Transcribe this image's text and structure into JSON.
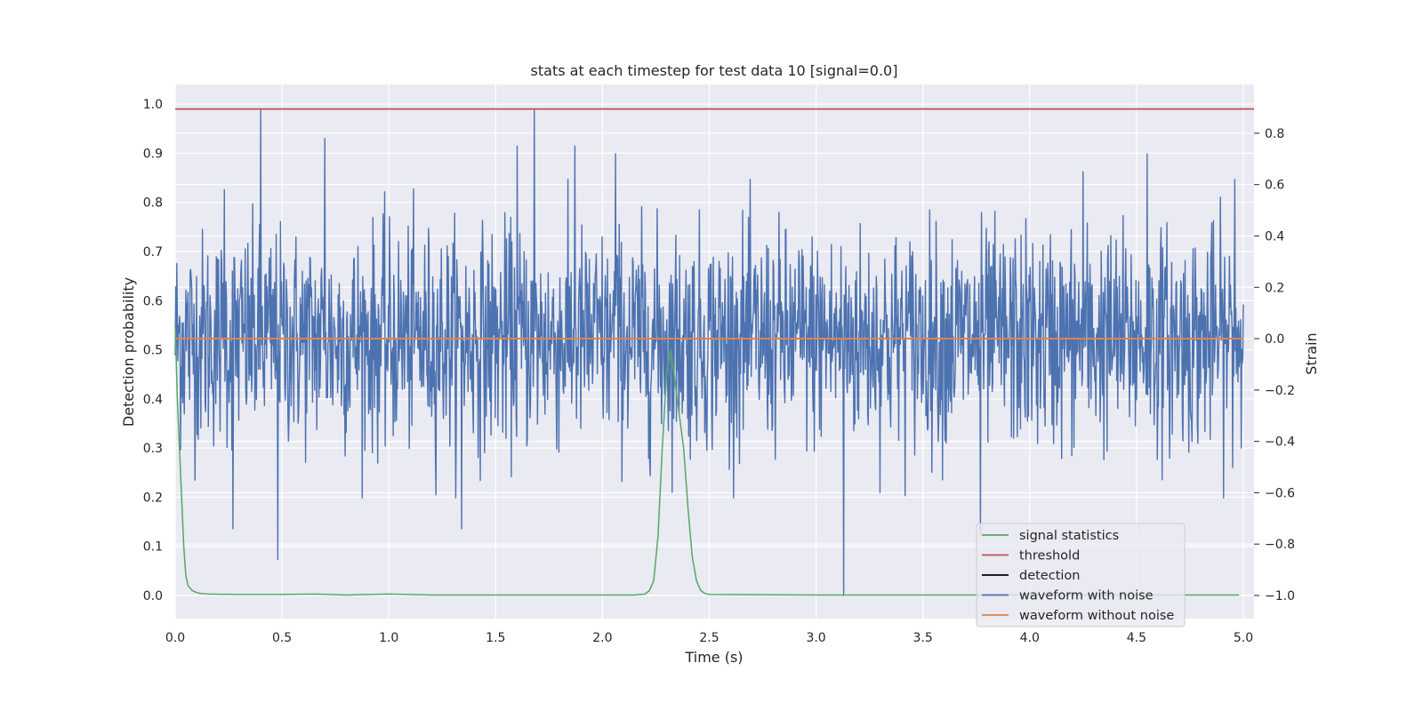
{
  "chart_data": {
    "type": "line",
    "title": "stats at each timestep for test data 10 [signal=0.0]",
    "xlabel": "Time (s)",
    "ylabel_left": "Detection probability",
    "ylabel_right": "Strain",
    "xlim": [
      0.0,
      5.05
    ],
    "ylim_left": [
      -0.047,
      1.04
    ],
    "ylim_right": [
      -1.09,
      0.99
    ],
    "x_ticks": [
      0.0,
      0.5,
      1.0,
      1.5,
      2.0,
      2.5,
      3.0,
      3.5,
      4.0,
      4.5,
      5.0
    ],
    "x_tick_labels": [
      "0.0",
      "0.5",
      "1.0",
      "1.5",
      "2.0",
      "2.5",
      "3.0",
      "3.5",
      "4.0",
      "4.5",
      "5.0"
    ],
    "y_left_ticks": [
      0.0,
      0.1,
      0.2,
      0.3,
      0.4,
      0.5,
      0.6,
      0.7,
      0.8,
      0.9,
      1.0
    ],
    "y_left_tick_labels": [
      "0.0",
      "0.1",
      "0.2",
      "0.3",
      "0.4",
      "0.5",
      "0.6",
      "0.7",
      "0.8",
      "0.9",
      "1.0"
    ],
    "y_right_ticks": [
      -1.0,
      -0.8,
      -0.6,
      -0.4,
      -0.2,
      0.0,
      0.2,
      0.4,
      0.6,
      0.8
    ],
    "y_right_tick_labels": [
      "−1.0",
      "−0.8",
      "−0.6",
      "−0.4",
      "−0.2",
      "0.0",
      "0.2",
      "0.4",
      "0.6",
      "0.8"
    ],
    "grid": true,
    "legend_position": "lower-right",
    "series": [
      {
        "name": "signal statistics",
        "axis": "left",
        "color": "#55a868",
        "x": [
          0.0,
          0.01,
          0.02,
          0.03,
          0.04,
          0.05,
          0.06,
          0.08,
          0.1,
          0.12,
          0.15,
          0.3,
          0.5,
          0.65,
          0.8,
          1.0,
          1.2,
          1.5,
          2.0,
          2.15,
          2.2,
          2.22,
          2.24,
          2.26,
          2.28,
          2.3,
          2.32,
          2.35,
          2.38,
          2.4,
          2.42,
          2.44,
          2.46,
          2.48,
          2.5,
          3.0,
          3.5,
          4.0,
          4.5,
          4.98
        ],
        "y": [
          0.55,
          0.4,
          0.3,
          0.2,
          0.1,
          0.04,
          0.02,
          0.01,
          0.006,
          0.004,
          0.003,
          0.002,
          0.002,
          0.003,
          0.001,
          0.003,
          0.001,
          0.001,
          0.001,
          0.001,
          0.003,
          0.01,
          0.03,
          0.12,
          0.3,
          0.45,
          0.5,
          0.4,
          0.3,
          0.18,
          0.08,
          0.03,
          0.01,
          0.004,
          0.002,
          0.001,
          0.001,
          0.001,
          0.001,
          0.001
        ]
      },
      {
        "name": "threshold",
        "axis": "left",
        "color": "#c44e52",
        "x": [
          0.0,
          5.05
        ],
        "y": [
          0.99,
          0.99
        ]
      },
      {
        "name": "detection",
        "axis": "left",
        "color": "#000000",
        "x": [],
        "y": []
      },
      {
        "name": "waveform with noise",
        "axis": "right",
        "color": "#4c72b0",
        "x_start": 0.0,
        "x_end": 5.0,
        "sample_count": 2000,
        "envelope": 0.28,
        "peaks": [
          {
            "x": 0.4,
            "y": 0.89
          },
          {
            "x": 0.48,
            "y": -0.86
          },
          {
            "x": 0.7,
            "y": 0.78
          },
          {
            "x": 1.68,
            "y": 0.89
          },
          {
            "x": 1.6,
            "y": 0.75
          },
          {
            "x": 1.87,
            "y": 0.75
          },
          {
            "x": 2.06,
            "y": 0.72
          },
          {
            "x": 0.27,
            "y": -0.74
          },
          {
            "x": 1.34,
            "y": -0.74
          },
          {
            "x": 3.13,
            "y": -1.0
          },
          {
            "x": 4.55,
            "y": 0.72
          },
          {
            "x": 4.25,
            "y": 0.65
          },
          {
            "x": 0.23,
            "y": 0.58
          },
          {
            "x": 3.77,
            "y": -0.76
          },
          {
            "x": 4.96,
            "y": 0.62
          }
        ]
      },
      {
        "name": "waveform without noise",
        "axis": "right",
        "color": "#dd8452",
        "x": [
          0.0,
          5.0
        ],
        "y": [
          0.0,
          0.0
        ]
      }
    ]
  }
}
